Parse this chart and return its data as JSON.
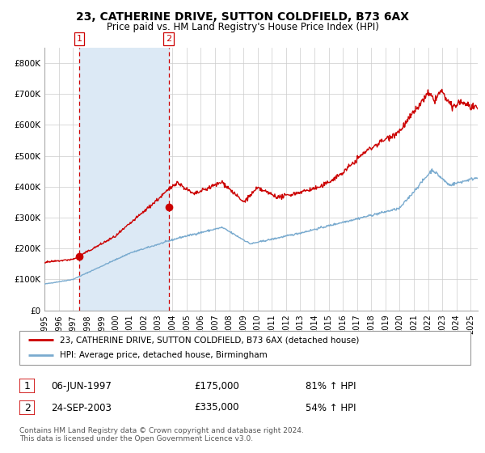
{
  "title": "23, CATHERINE DRIVE, SUTTON COLDFIELD, B73 6AX",
  "subtitle": "Price paid vs. HM Land Registry's House Price Index (HPI)",
  "legend_line1": "23, CATHERINE DRIVE, SUTTON COLDFIELD, B73 6AX (detached house)",
  "legend_line2": "HPI: Average price, detached house, Birmingham",
  "table_row1_date": "06-JUN-1997",
  "table_row1_price": "£175,000",
  "table_row1_hpi": "81% ↑ HPI",
  "table_row2_date": "24-SEP-2003",
  "table_row2_price": "£335,000",
  "table_row2_hpi": "54% ↑ HPI",
  "footnote1": "Contains HM Land Registry data © Crown copyright and database right 2024.",
  "footnote2": "This data is licensed under the Open Government Licence v3.0.",
  "sale1_x": 1997.43,
  "sale1_y": 175000,
  "sale2_x": 2003.73,
  "sale2_y": 335000,
  "vline1_x": 1997.43,
  "vline2_x": 2003.73,
  "shade_x_start": 1997.43,
  "shade_x_end": 2003.73,
  "red_line_color": "#cc0000",
  "blue_line_color": "#7aabcf",
  "shade_color": "#dce9f5",
  "vline_color": "#cc0000",
  "background_color": "#ffffff",
  "grid_color": "#cccccc",
  "ylim": [
    0,
    850000
  ],
  "xlim_start": 1995.0,
  "xlim_end": 2025.5
}
